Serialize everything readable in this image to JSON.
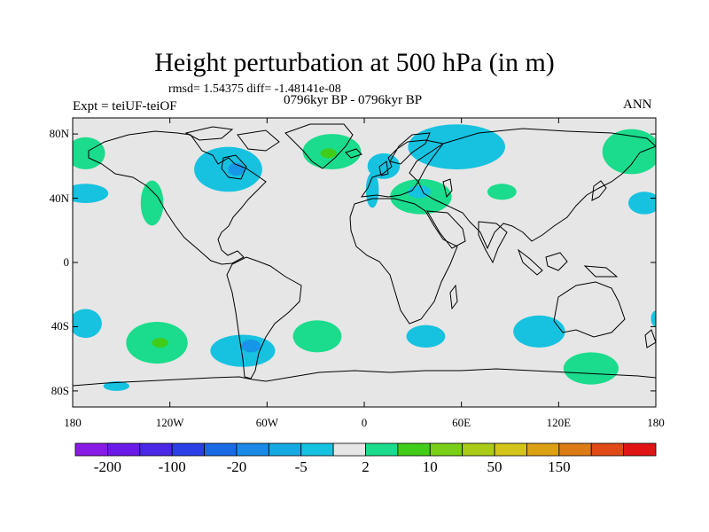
{
  "header": {
    "title": "Height perturbation at 500 hPa (in m)",
    "stats": "rmsd= 1.54375 diff= -1.48141e-08",
    "expt": "Expt = teiUF-teiOF",
    "period": "0796kyr BP - 0796kyr BP",
    "season": "ANN"
  },
  "map": {
    "projection": "cylindrical-equidistant",
    "lon_range": [
      -180,
      180
    ],
    "lat_range": [
      -90,
      90
    ],
    "background_color": "#e6e6e6",
    "lat_ticks": [
      {
        "value": 80,
        "label": "80N"
      },
      {
        "value": 40,
        "label": "40N"
      },
      {
        "value": 0,
        "label": "0"
      },
      {
        "value": -40,
        "label": "40S"
      },
      {
        "value": -80,
        "label": "80S"
      }
    ],
    "lon_ticks": [
      {
        "value": -180,
        "label": "180"
      },
      {
        "value": -120,
        "label": "120W"
      },
      {
        "value": -60,
        "label": "60W"
      },
      {
        "value": 0,
        "label": "0"
      },
      {
        "value": 60,
        "label": "60E"
      },
      {
        "value": 120,
        "label": "120E"
      },
      {
        "value": 180,
        "label": "180"
      }
    ],
    "anomalies": [
      {
        "lon": -172,
        "lat": 68,
        "rlon": 12,
        "rlat": 10,
        "color": "#1adc8c"
      },
      {
        "lon": -172,
        "lat": 43,
        "rlon": 14,
        "rlat": 6,
        "color": "#16c2e0"
      },
      {
        "lon": -131,
        "lat": 37,
        "rlon": 7,
        "rlat": 14,
        "color": "#1adc8c"
      },
      {
        "lon": -84,
        "lat": 58,
        "rlon": 21,
        "rlat": 14,
        "color": "#16c2e0"
      },
      {
        "lon": -79,
        "lat": 58,
        "rlon": 5,
        "rlat": 4,
        "color": "#1596e6"
      },
      {
        "lon": -20,
        "lat": 69,
        "rlon": 18,
        "rlat": 11,
        "color": "#1adc8c"
      },
      {
        "lon": -22,
        "lat": 68,
        "rlon": 5,
        "rlat": 3,
        "color": "#40cc18"
      },
      {
        "lon": 57,
        "lat": 72,
        "rlon": 30,
        "rlat": 14,
        "color": "#16c2e0"
      },
      {
        "lon": 12,
        "lat": 60,
        "rlon": 10,
        "rlat": 8,
        "color": "#16c2e0"
      },
      {
        "lon": 5,
        "lat": 45,
        "rlon": 4,
        "rlat": 11,
        "color": "#16c2e0"
      },
      {
        "lon": 35,
        "lat": 41,
        "rlon": 19,
        "rlat": 11,
        "color": "#1adc8c"
      },
      {
        "lon": 34,
        "lat": 44,
        "rlon": 7,
        "rlat": 4,
        "color": "#16c2e0"
      },
      {
        "lon": 85,
        "lat": 44,
        "rlon": 9,
        "rlat": 5,
        "color": "#1adc8c"
      },
      {
        "lon": 165,
        "lat": 69,
        "rlon": 18,
        "rlat": 14,
        "color": "#1adc8c"
      },
      {
        "lon": 173,
        "lat": 37,
        "rlon": 10,
        "rlat": 7,
        "color": "#16c2e0"
      },
      {
        "lon": -172,
        "lat": -38,
        "rlon": 10,
        "rlat": 9,
        "color": "#16c2e0"
      },
      {
        "lon": -128,
        "lat": -50,
        "rlon": 19,
        "rlat": 13,
        "color": "#1adc8c"
      },
      {
        "lon": -126,
        "lat": -50,
        "rlon": 5,
        "rlat": 3,
        "color": "#40cc18"
      },
      {
        "lon": -75,
        "lat": -55,
        "rlon": 20,
        "rlat": 10,
        "color": "#16c2e0"
      },
      {
        "lon": -70,
        "lat": -52,
        "rlon": 6,
        "rlat": 4,
        "color": "#1596e6"
      },
      {
        "lon": -29,
        "lat": -46,
        "rlon": 15,
        "rlat": 10,
        "color": "#1adc8c"
      },
      {
        "lon": 38,
        "lat": -46,
        "rlon": 12,
        "rlat": 7,
        "color": "#16c2e0"
      },
      {
        "lon": 108,
        "lat": -43,
        "rlon": 16,
        "rlat": 10,
        "color": "#16c2e0"
      },
      {
        "lon": 140,
        "lat": -66,
        "rlon": 17,
        "rlat": 10,
        "color": "#1adc8c"
      },
      {
        "lon": -153,
        "lat": -77,
        "rlon": 8,
        "rlat": 3,
        "color": "#16c2e0"
      },
      {
        "lon": 180,
        "lat": -35,
        "rlon": 3,
        "rlat": 5,
        "color": "#16c2e0"
      }
    ]
  },
  "colorbar": {
    "colors": [
      "#8a1ae6",
      "#6a1ae6",
      "#4a28e6",
      "#2a40e6",
      "#1a6ae6",
      "#1a8ae6",
      "#16a8e0",
      "#16c2e0",
      "#e6e6e6",
      "#1adc8c",
      "#40cc18",
      "#7ad018",
      "#aacc18",
      "#d2c418",
      "#dca014",
      "#dc7a14",
      "#e04a14",
      "#e01414"
    ],
    "labels": [
      {
        "index": 1,
        "text": "-200"
      },
      {
        "index": 3,
        "text": "-100"
      },
      {
        "index": 5,
        "text": "-20"
      },
      {
        "index": 7,
        "text": "-5"
      },
      {
        "index": 9,
        "text": "2"
      },
      {
        "index": 11,
        "text": "10"
      },
      {
        "index": 13,
        "text": "50"
      },
      {
        "index": 15,
        "text": "150"
      }
    ]
  }
}
